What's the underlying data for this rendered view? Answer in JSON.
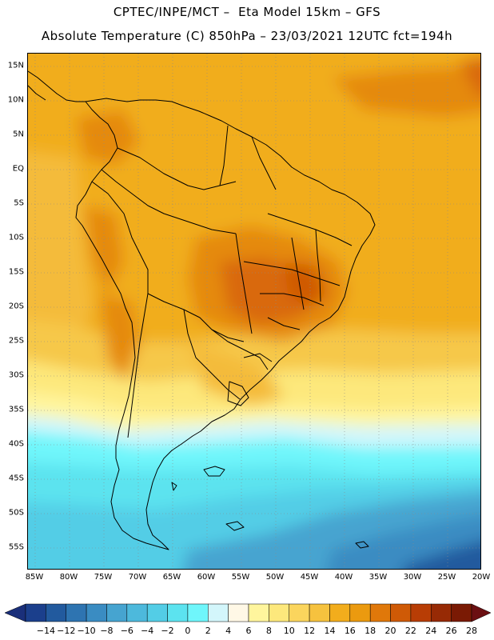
{
  "title_line1": "CPTEC/INPE/MCT –  Eta Model 15km – GFS",
  "title_line2": "Absolute Temperature (C) 850hPa – 23/03/2021 12UTC fct=194h",
  "latitude_labels": [
    "15N",
    "10N",
    "5N",
    "EQ",
    "5S",
    "10S",
    "15S",
    "20S",
    "25S",
    "30S",
    "35S",
    "40S",
    "45S",
    "50S",
    "55S"
  ],
  "longitude_labels": [
    "85W",
    "80W",
    "75W",
    "70W",
    "65W",
    "60W",
    "55W",
    "50W",
    "45W",
    "40W",
    "35W",
    "30W",
    "25W",
    "20W"
  ],
  "colorbar": {
    "labels": [
      "-14",
      "-12",
      "-10",
      "-8",
      "-6",
      "-4",
      "-2",
      "0",
      "2",
      "4",
      "6",
      "8",
      "10",
      "12",
      "14",
      "16",
      "18",
      "20",
      "22",
      "24",
      "26",
      "28"
    ],
    "colors": [
      "#1b3f8c",
      "#225a9e",
      "#2e74b1",
      "#3a8cc2",
      "#46a4d0",
      "#4db9dc",
      "#53cde6",
      "#5ce3ef",
      "#6ff6fb",
      "#d3f6fb",
      "#fff8e6",
      "#fff59d",
      "#fde87c",
      "#fbd55d",
      "#f6c23e",
      "#f2ad1c",
      "#eb9a0f",
      "#e0780a",
      "#cf5a06",
      "#b83d05",
      "#972a05",
      "#7a1a04"
    ],
    "left_arrow_color": "#1a2f7a",
    "right_arrow_color": "#6b0f12"
  }
}
